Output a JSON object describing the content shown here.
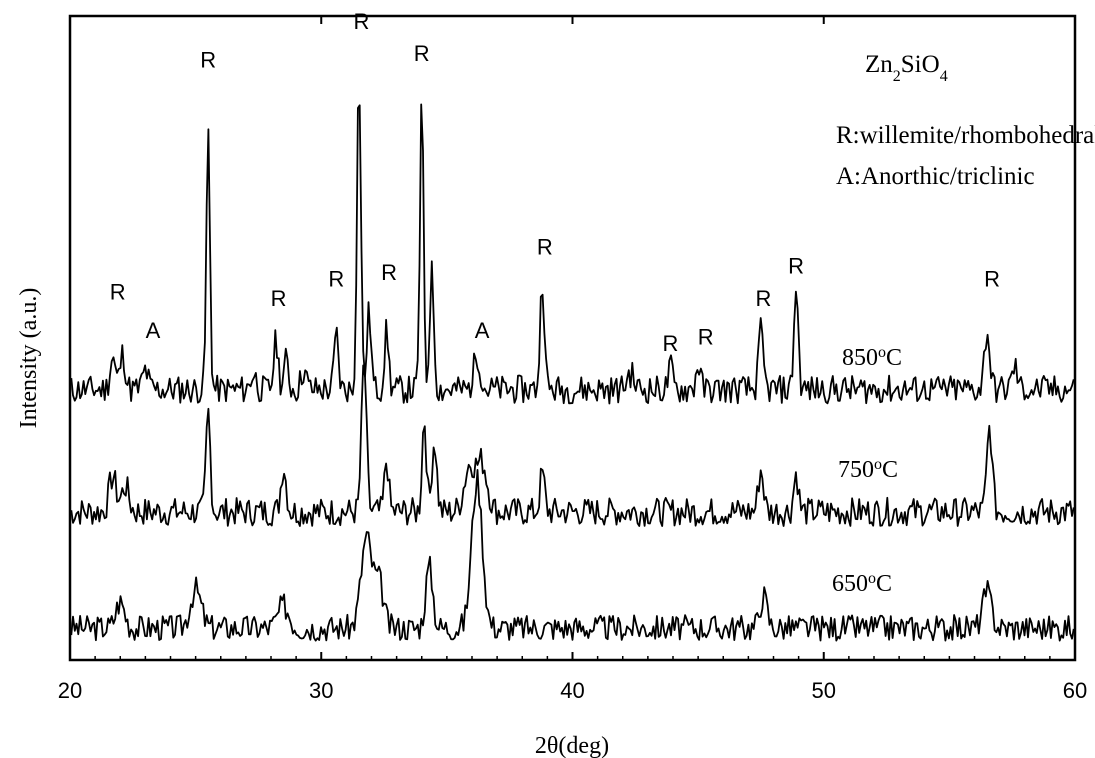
{
  "chart_data": {
    "type": "line",
    "title": "",
    "xlabel": "2θ(deg)",
    "ylabel": "Intensity (a.u.)",
    "xlim": [
      20,
      60
    ],
    "ylim": [
      0,
      10
    ],
    "xticks": [
      20,
      30,
      40,
      50,
      60
    ],
    "grid": false,
    "legend": {
      "position": "top-right",
      "compound": {
        "parts": [
          [
            "Zn",
            ""
          ],
          [
            "2",
            "sub"
          ],
          [
            "SiO",
            ""
          ],
          [
            "4",
            "sub"
          ]
        ]
      },
      "lines": [
        "R:willemite/rhombohedral",
        "A:Anorthic/triclinic"
      ]
    },
    "series": [
      {
        "name": "850°C",
        "label_parts": [
          [
            "850",
            ""
          ],
          [
            "o",
            "sup"
          ],
          [
            "C",
            ""
          ]
        ],
        "baseline": 4.2,
        "noise": 0.22,
        "seed": 11,
        "peaks": [
          {
            "x": 21.7,
            "h": 0.5,
            "w": 0.15
          },
          {
            "x": 22.1,
            "h": 0.55,
            "w": 0.15
          },
          {
            "x": 23.0,
            "h": 0.3,
            "w": 0.15
          },
          {
            "x": 25.5,
            "h": 4.0,
            "w": 0.1
          },
          {
            "x": 27.3,
            "h": 0.25,
            "w": 0.15
          },
          {
            "x": 28.2,
            "h": 0.75,
            "w": 0.13
          },
          {
            "x": 28.6,
            "h": 0.45,
            "w": 0.13
          },
          {
            "x": 29.3,
            "h": 0.3,
            "w": 0.15
          },
          {
            "x": 30.6,
            "h": 0.85,
            "w": 0.12
          },
          {
            "x": 31.5,
            "h": 4.9,
            "w": 0.11
          },
          {
            "x": 31.9,
            "h": 1.2,
            "w": 0.12
          },
          {
            "x": 32.6,
            "h": 0.9,
            "w": 0.12
          },
          {
            "x": 34.0,
            "h": 4.5,
            "w": 0.1
          },
          {
            "x": 34.4,
            "h": 1.8,
            "w": 0.12
          },
          {
            "x": 36.2,
            "h": 0.55,
            "w": 0.18
          },
          {
            "x": 38.8,
            "h": 1.7,
            "w": 0.12
          },
          {
            "x": 42.3,
            "h": 0.25,
            "w": 0.2
          },
          {
            "x": 43.9,
            "h": 0.35,
            "w": 0.12
          },
          {
            "x": 45.0,
            "h": 0.4,
            "w": 0.12
          },
          {
            "x": 47.5,
            "h": 0.9,
            "w": 0.13
          },
          {
            "x": 48.9,
            "h": 1.6,
            "w": 0.12
          },
          {
            "x": 56.5,
            "h": 0.9,
            "w": 0.15
          },
          {
            "x": 57.6,
            "h": 0.35,
            "w": 0.15
          }
        ]
      },
      {
        "name": "750°C",
        "label_parts": [
          [
            "750",
            ""
          ],
          [
            "o",
            "sup"
          ],
          [
            "C",
            ""
          ]
        ],
        "baseline": 2.3,
        "noise": 0.22,
        "seed": 7,
        "peaks": [
          {
            "x": 21.7,
            "h": 0.55,
            "w": 0.2
          },
          {
            "x": 22.2,
            "h": 0.4,
            "w": 0.2
          },
          {
            "x": 25.5,
            "h": 1.55,
            "w": 0.12
          },
          {
            "x": 28.5,
            "h": 0.7,
            "w": 0.15
          },
          {
            "x": 31.7,
            "h": 2.3,
            "w": 0.14
          },
          {
            "x": 32.6,
            "h": 0.8,
            "w": 0.12
          },
          {
            "x": 34.1,
            "h": 1.45,
            "w": 0.12
          },
          {
            "x": 34.5,
            "h": 1.1,
            "w": 0.14
          },
          {
            "x": 35.9,
            "h": 0.7,
            "w": 0.3
          },
          {
            "x": 36.4,
            "h": 0.75,
            "w": 0.3
          },
          {
            "x": 38.8,
            "h": 0.6,
            "w": 0.13
          },
          {
            "x": 47.5,
            "h": 0.65,
            "w": 0.15
          },
          {
            "x": 48.9,
            "h": 0.6,
            "w": 0.13
          },
          {
            "x": 56.6,
            "h": 1.3,
            "w": 0.15
          }
        ]
      },
      {
        "name": "650°C",
        "label_parts": [
          [
            "650",
            ""
          ],
          [
            "o",
            "sup"
          ],
          [
            "C",
            ""
          ]
        ],
        "baseline": 0.5,
        "noise": 0.2,
        "seed": 3,
        "peaks": [
          {
            "x": 22.0,
            "h": 0.4,
            "w": 0.25
          },
          {
            "x": 25.0,
            "h": 0.6,
            "w": 0.3
          },
          {
            "x": 28.5,
            "h": 0.35,
            "w": 0.3
          },
          {
            "x": 31.8,
            "h": 1.4,
            "w": 0.3
          },
          {
            "x": 32.3,
            "h": 0.7,
            "w": 0.25
          },
          {
            "x": 34.3,
            "h": 0.95,
            "w": 0.2
          },
          {
            "x": 36.2,
            "h": 2.3,
            "w": 0.3
          },
          {
            "x": 47.6,
            "h": 0.5,
            "w": 0.2
          },
          {
            "x": 56.5,
            "h": 0.55,
            "w": 0.25
          }
        ]
      }
    ],
    "annotations": [
      {
        "text": "R",
        "x": 21.9,
        "y": 5.6
      },
      {
        "text": "A",
        "x": 23.3,
        "y": 5.0
      },
      {
        "text": "R",
        "x": 25.5,
        "y": 9.2
      },
      {
        "text": "R",
        "x": 28.3,
        "y": 5.5
      },
      {
        "text": "R",
        "x": 30.6,
        "y": 5.8
      },
      {
        "text": "R",
        "x": 31.6,
        "y": 9.8
      },
      {
        "text": "R",
        "x": 32.7,
        "y": 5.9
      },
      {
        "text": "R",
        "x": 34.0,
        "y": 9.3
      },
      {
        "text": "A",
        "x": 36.4,
        "y": 5.0
      },
      {
        "text": "R",
        "x": 38.9,
        "y": 6.3
      },
      {
        "text": "R",
        "x": 43.9,
        "y": 4.8
      },
      {
        "text": "R",
        "x": 45.3,
        "y": 4.9
      },
      {
        "text": "R",
        "x": 47.6,
        "y": 5.5
      },
      {
        "text": "R",
        "x": 48.9,
        "y": 6.0
      },
      {
        "text": "R",
        "x": 56.7,
        "y": 5.8
      }
    ],
    "colors": {
      "line": "#000000",
      "background": "#ffffff"
    }
  }
}
